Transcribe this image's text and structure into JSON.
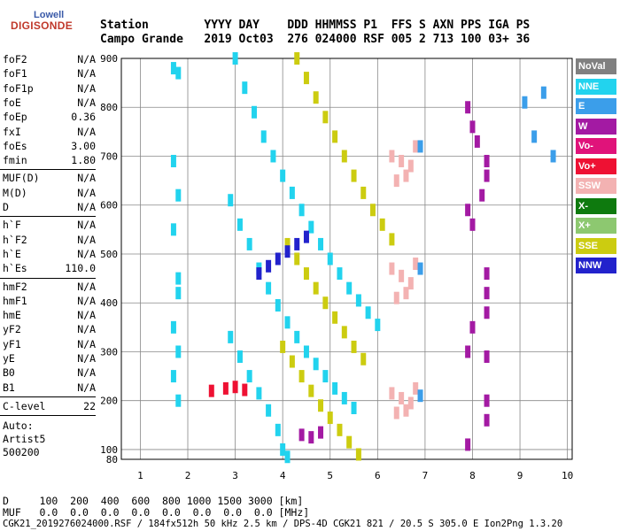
{
  "logo": {
    "top": "Lowell",
    "main": "DIGISONDE"
  },
  "header": {
    "labels_row": "Station        YYYY DAY    DDD HHMMSS P1  FFS S AXN PPS IGA PS",
    "values_row": "Campo Grande   2019 Oct03  276 024000 RSF 005 2 713 100 03+ 36"
  },
  "params": [
    {
      "name": "foF2",
      "value": "N/A",
      "group": 1
    },
    {
      "name": "foF1",
      "value": "N/A",
      "group": 1
    },
    {
      "name": "foF1p",
      "value": "N/A",
      "group": 1
    },
    {
      "name": "foE",
      "value": "N/A",
      "group": 1
    },
    {
      "name": "foEp",
      "value": "0.36",
      "group": 1
    },
    {
      "name": "fxI",
      "value": "N/A",
      "group": 1
    },
    {
      "name": "foEs",
      "value": "3.00",
      "group": 1
    },
    {
      "name": "fmin",
      "value": "1.80",
      "group": 1
    },
    {
      "name": "MUF(D)",
      "value": "N/A",
      "group": 2
    },
    {
      "name": "M(D)",
      "value": "N/A",
      "group": 2
    },
    {
      "name": "D",
      "value": "N/A",
      "group": 2
    },
    {
      "name": "h`F",
      "value": "N/A",
      "group": 3
    },
    {
      "name": "h`F2",
      "value": "N/A",
      "group": 3
    },
    {
      "name": "h`E",
      "value": "N/A",
      "group": 3
    },
    {
      "name": "h`Es",
      "value": "110.0",
      "group": 3
    },
    {
      "name": "hmF2",
      "value": "N/A",
      "group": 4
    },
    {
      "name": "hmF1",
      "value": "N/A",
      "group": 4
    },
    {
      "name": "hmE",
      "value": "N/A",
      "group": 4
    },
    {
      "name": "yF2",
      "value": "N/A",
      "group": 4
    },
    {
      "name": "yF1",
      "value": "N/A",
      "group": 4
    },
    {
      "name": "yE",
      "value": "N/A",
      "group": 4
    },
    {
      "name": "B0",
      "value": "N/A",
      "group": 4
    },
    {
      "name": "B1",
      "value": "N/A",
      "group": 4
    }
  ],
  "c_level": {
    "name": "C-level",
    "value": "22"
  },
  "auto_block": [
    "Auto:",
    "Artist5",
    "500200"
  ],
  "legend": [
    {
      "label": "NoVal",
      "color": "#808080"
    },
    {
      "label": "NNE",
      "color": "#22d3ee"
    },
    {
      "label": "E",
      "color": "#3b9eea"
    },
    {
      "label": "W",
      "color": "#a31aa3"
    },
    {
      "label": "Vo-",
      "color": "#e0137a"
    },
    {
      "label": "Vo+",
      "color": "#ee1133"
    },
    {
      "label": "SSW",
      "color": "#f3b2b2"
    },
    {
      "label": "X-",
      "color": "#0e7a0e"
    },
    {
      "label": "X+",
      "color": "#8dc870"
    },
    {
      "label": "SSE",
      "color": "#cccc10"
    },
    {
      "label": "NNW",
      "color": "#2222cc"
    }
  ],
  "footer": {
    "d_row": "D     100  200  400  600  800 1000 1500 3000 [km]",
    "muf_row": "MUF   0.0  0.0  0.0  0.0  0.0  0.0  0.0  0.0 [MHz]",
    "file_row": "CGK21_2019276024000.RSF / 184fx512h 50 kHz 2.5 km / DPS-4D CGK21 821 / 20.5 S 305.0 E Ion2Png 1.3.20"
  },
  "chart_data": {
    "type": "scatter",
    "title": "",
    "xlabel": "",
    "ylabel": "",
    "xlim": [
      0.6,
      10.1
    ],
    "ylim": [
      80,
      900
    ],
    "xticks": [
      1,
      2,
      3,
      4,
      5,
      6,
      7,
      8,
      9,
      10
    ],
    "yticks": [
      100,
      200,
      300,
      400,
      500,
      600,
      700,
      800,
      900
    ],
    "grid": true,
    "series": [
      {
        "name": "NNE",
        "color": "#22d3ee",
        "points": [
          [
            3.0,
            900
          ],
          [
            3.2,
            840
          ],
          [
            3.4,
            790
          ],
          [
            3.6,
            740
          ],
          [
            3.8,
            700
          ],
          [
            4.0,
            660
          ],
          [
            4.2,
            625
          ],
          [
            4.4,
            590
          ],
          [
            4.6,
            555
          ],
          [
            4.8,
            520
          ],
          [
            5.0,
            490
          ],
          [
            5.2,
            460
          ],
          [
            5.4,
            430
          ],
          [
            5.6,
            405
          ],
          [
            5.8,
            380
          ],
          [
            6.0,
            355
          ],
          [
            2.9,
            610
          ],
          [
            3.1,
            560
          ],
          [
            3.3,
            520
          ],
          [
            3.5,
            470
          ],
          [
            3.7,
            430
          ],
          [
            3.9,
            395
          ],
          [
            4.1,
            360
          ],
          [
            4.3,
            330
          ],
          [
            4.5,
            300
          ],
          [
            4.7,
            275
          ],
          [
            4.9,
            250
          ],
          [
            5.1,
            225
          ],
          [
            5.3,
            205
          ],
          [
            5.5,
            185
          ],
          [
            2.9,
            330
          ],
          [
            3.1,
            290
          ],
          [
            3.3,
            250
          ],
          [
            3.5,
            215
          ],
          [
            3.7,
            180
          ],
          [
            3.9,
            140
          ],
          [
            4.0,
            100
          ],
          [
            4.1,
            85
          ],
          [
            1.7,
            880
          ],
          [
            1.8,
            870
          ],
          [
            1.7,
            690
          ],
          [
            1.8,
            620
          ],
          [
            1.7,
            550
          ],
          [
            1.8,
            450
          ],
          [
            1.8,
            420
          ],
          [
            1.7,
            350
          ],
          [
            1.8,
            300
          ],
          [
            1.7,
            250
          ],
          [
            1.8,
            200
          ]
        ]
      },
      {
        "name": "SSE",
        "color": "#cccc10",
        "points": [
          [
            4.3,
            900
          ],
          [
            4.5,
            860
          ],
          [
            4.7,
            820
          ],
          [
            4.9,
            780
          ],
          [
            5.1,
            740
          ],
          [
            5.3,
            700
          ],
          [
            5.5,
            660
          ],
          [
            5.7,
            625
          ],
          [
            5.9,
            590
          ],
          [
            6.1,
            560
          ],
          [
            6.3,
            530
          ],
          [
            4.1,
            520
          ],
          [
            4.3,
            490
          ],
          [
            4.5,
            460
          ],
          [
            4.7,
            430
          ],
          [
            4.9,
            400
          ],
          [
            5.1,
            370
          ],
          [
            5.3,
            340
          ],
          [
            5.5,
            310
          ],
          [
            5.7,
            285
          ],
          [
            4.0,
            310
          ],
          [
            4.2,
            280
          ],
          [
            4.4,
            250
          ],
          [
            4.6,
            220
          ],
          [
            4.8,
            190
          ],
          [
            5.0,
            165
          ],
          [
            5.2,
            140
          ],
          [
            5.4,
            115
          ],
          [
            5.6,
            90
          ]
        ]
      },
      {
        "name": "SSW",
        "color": "#f3b2b2",
        "points": [
          [
            6.3,
            700
          ],
          [
            6.5,
            690
          ],
          [
            6.7,
            680
          ],
          [
            6.6,
            660
          ],
          [
            6.4,
            650
          ],
          [
            6.8,
            720
          ],
          [
            6.3,
            470
          ],
          [
            6.5,
            455
          ],
          [
            6.7,
            440
          ],
          [
            6.6,
            420
          ],
          [
            6.4,
            410
          ],
          [
            6.8,
            480
          ],
          [
            6.3,
            215
          ],
          [
            6.5,
            205
          ],
          [
            6.7,
            195
          ],
          [
            6.6,
            180
          ],
          [
            6.4,
            175
          ],
          [
            6.8,
            225
          ]
        ]
      },
      {
        "name": "W",
        "color": "#a31aa3",
        "points": [
          [
            7.9,
            800
          ],
          [
            8.0,
            760
          ],
          [
            8.1,
            730
          ],
          [
            8.3,
            690
          ],
          [
            8.3,
            660
          ],
          [
            8.2,
            620
          ],
          [
            7.9,
            590
          ],
          [
            8.0,
            560
          ],
          [
            8.3,
            460
          ],
          [
            8.3,
            420
          ],
          [
            8.3,
            380
          ],
          [
            8.0,
            350
          ],
          [
            7.9,
            300
          ],
          [
            8.3,
            290
          ],
          [
            8.3,
            200
          ],
          [
            8.3,
            160
          ],
          [
            7.9,
            110
          ],
          [
            4.4,
            130
          ],
          [
            4.6,
            125
          ],
          [
            4.8,
            135
          ]
        ]
      },
      {
        "name": "NNW",
        "color": "#2222cc",
        "points": [
          [
            3.5,
            460
          ],
          [
            3.7,
            475
          ],
          [
            3.9,
            490
          ],
          [
            4.1,
            505
          ],
          [
            4.3,
            520
          ],
          [
            4.5,
            535
          ]
        ]
      },
      {
        "name": "E",
        "color": "#3b9eea",
        "points": [
          [
            6.9,
            720
          ],
          [
            6.9,
            470
          ],
          [
            6.9,
            210
          ],
          [
            9.1,
            810
          ],
          [
            9.5,
            830
          ],
          [
            9.3,
            740
          ],
          [
            9.7,
            700
          ]
        ]
      },
      {
        "name": "Vo+",
        "color": "#ee1133",
        "points": [
          [
            2.5,
            220
          ],
          [
            2.8,
            225
          ],
          [
            3.0,
            228
          ],
          [
            3.2,
            222
          ]
        ]
      }
    ]
  }
}
